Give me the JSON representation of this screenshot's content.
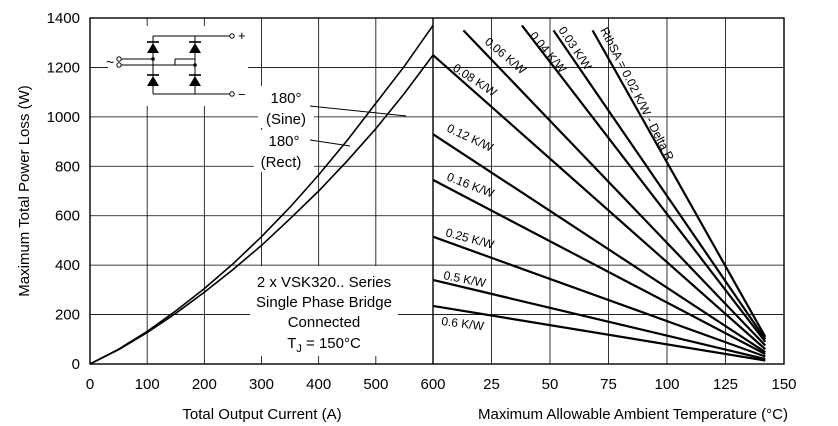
{
  "chart_data": {
    "type": "line",
    "ylabel": "Maximum Total Power Loss (W)",
    "ylim": [
      0,
      1400
    ],
    "yticks": [
      "0",
      "200",
      "400",
      "600",
      "800",
      "1000",
      "1200",
      "1400"
    ],
    "grid": true,
    "left_panel": {
      "xlabel": "Total Output Current (A)",
      "xlim": [
        0,
        600
      ],
      "xticks": [
        "0",
        "100",
        "200",
        "300",
        "400",
        "500",
        "600"
      ],
      "series": [
        {
          "name": "180° (Sine)",
          "x": [
            0,
            50,
            100,
            150,
            200,
            250,
            300,
            350,
            400,
            450,
            500,
            550,
            600
          ],
          "y": [
            0,
            60,
            132,
            215,
            305,
            405,
            515,
            635,
            765,
            905,
            1055,
            1205,
            1370
          ]
        },
        {
          "name": "180° (Rect)",
          "x": [
            0,
            50,
            100,
            150,
            200,
            250,
            300,
            350,
            400,
            450,
            500,
            550,
            600
          ],
          "y": [
            0,
            58,
            127,
            205,
            290,
            382,
            480,
            588,
            700,
            822,
            952,
            1095,
            1250
          ]
        }
      ]
    },
    "right_panel": {
      "xlabel": "Maximum Allowable Ambient Temperature (°C)",
      "xlim": [
        0,
        150
      ],
      "xticks": [
        "25",
        "50",
        "75",
        "100",
        "125",
        "150"
      ],
      "series": [
        {
          "name": "RthSA = 0.02 K/W - Delta R",
          "x": [
            68.2,
            142
          ],
          "y": [
            1350,
            110
          ]
        },
        {
          "name": "0.03 K/W",
          "x": [
            51.5,
            142
          ],
          "y": [
            1350,
            100
          ]
        },
        {
          "name": "0.04 K/W",
          "x": [
            38,
            142
          ],
          "y": [
            1370,
            90
          ]
        },
        {
          "name": "0.06 K/W",
          "x": [
            13,
            142
          ],
          "y": [
            1350,
            75
          ]
        },
        {
          "name": "0.08 K/W",
          "x": [
            0,
            142
          ],
          "y": [
            1250,
            60
          ]
        },
        {
          "name": "0.12 K/W",
          "x": [
            0,
            142
          ],
          "y": [
            930,
            48
          ]
        },
        {
          "name": "0.16 K/W",
          "x": [
            0,
            142
          ],
          "y": [
            745,
            40
          ]
        },
        {
          "name": "0.25 K/W",
          "x": [
            0,
            142
          ],
          "y": [
            515,
            30
          ]
        },
        {
          "name": "0.5 K/W",
          "x": [
            0,
            142
          ],
          "y": [
            340,
            20
          ]
        },
        {
          "name": "0.6 K/W",
          "x": [
            0,
            142
          ],
          "y": [
            235,
            14
          ]
        }
      ]
    },
    "annotations": {
      "sine_line1": "180°",
      "sine_line2": "(Sine)",
      "rect_line1": "180°",
      "rect_line2": "(Rect)",
      "note_line1": "2 x VSK320.. Series",
      "note_line2": "Single Phase Bridge",
      "note_line3": "Connected",
      "note_tj_base": "T",
      "note_tj_sub": "J",
      "note_tj_rest": " = 150°C"
    },
    "circuit": {
      "plus": "+",
      "minus": "−",
      "ac": "~"
    }
  }
}
